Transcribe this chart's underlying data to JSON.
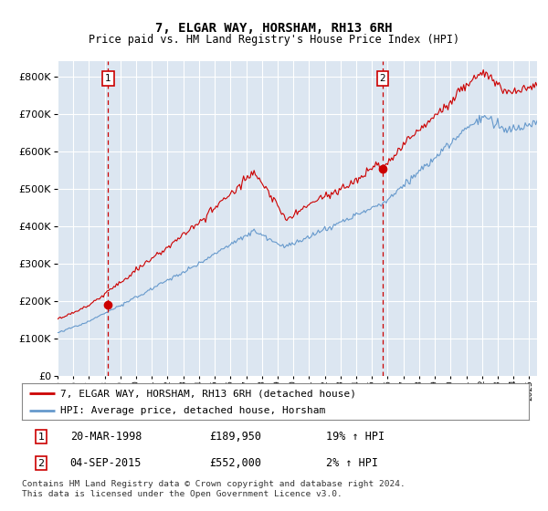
{
  "title": "7, ELGAR WAY, HORSHAM, RH13 6RH",
  "subtitle": "Price paid vs. HM Land Registry's House Price Index (HPI)",
  "ylim": [
    0,
    840000
  ],
  "xlim_start": 1995.0,
  "xlim_end": 2025.5,
  "purchase1": {
    "date_num": 1998.22,
    "value": 189950,
    "label": "1",
    "pct": "19%",
    "date_str": "20-MAR-1998",
    "price_str": "£189,950"
  },
  "purchase2": {
    "date_num": 2015.67,
    "value": 552000,
    "label": "2",
    "pct": "2%",
    "date_str": "04-SEP-2015",
    "price_str": "£552,000"
  },
  "legend_line1": "7, ELGAR WAY, HORSHAM, RH13 6RH (detached house)",
  "legend_line2": "HPI: Average price, detached house, Horsham",
  "footer": "Contains HM Land Registry data © Crown copyright and database right 2024.\nThis data is licensed under the Open Government Licence v3.0.",
  "line_color_red": "#cc0000",
  "line_color_blue": "#6699cc",
  "bg_color": "#dce6f1",
  "grid_color": "#ffffff",
  "box_color": "#cc0000"
}
